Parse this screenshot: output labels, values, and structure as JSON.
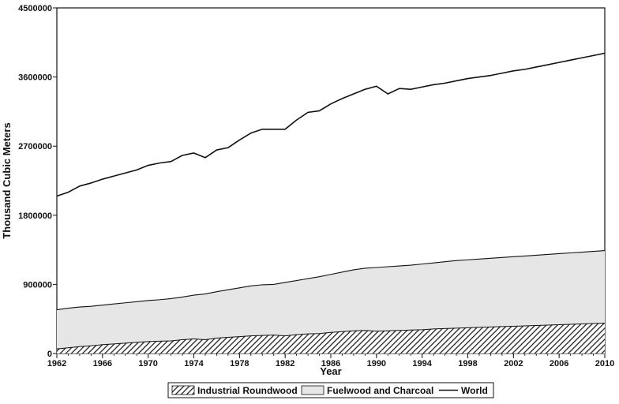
{
  "chart_data": {
    "type": "area",
    "xlabel": "Year",
    "ylabel": "Thousand Cubic Meters",
    "xlim": [
      1962,
      2010
    ],
    "ylim": [
      0,
      4500000
    ],
    "x_ticks": [
      "1962",
      "1966",
      "1970",
      "1974",
      "1978",
      "1982",
      "1986",
      "1990",
      "1994",
      "1998",
      "2002",
      "2006",
      "2010"
    ],
    "y_ticks": [
      "0",
      "900000",
      "1800000",
      "2700000",
      "3600000",
      "4500000"
    ],
    "grid": false,
    "legend_position": "bottom",
    "stacked_areas": true,
    "x": [
      1962,
      1963,
      1964,
      1965,
      1966,
      1967,
      1968,
      1969,
      1970,
      1971,
      1972,
      1973,
      1974,
      1975,
      1976,
      1977,
      1978,
      1979,
      1980,
      1981,
      1982,
      1983,
      1984,
      1985,
      1986,
      1987,
      1988,
      1989,
      1990,
      1991,
      1992,
      1993,
      1994,
      1995,
      1996,
      1997,
      1998,
      1999,
      2000,
      2001,
      2002,
      2003,
      2004,
      2005,
      2006,
      2007,
      2008,
      2009,
      2010
    ],
    "series": [
      {
        "name": "Industrial Roundwood",
        "style": "hatched",
        "fill": "#555555",
        "values": [
          60000,
          75000,
          90000,
          100000,
          115000,
          125000,
          135000,
          145000,
          155000,
          160000,
          165000,
          180000,
          190000,
          180000,
          200000,
          210000,
          220000,
          230000,
          235000,
          240000,
          230000,
          245000,
          255000,
          260000,
          275000,
          285000,
          295000,
          300000,
          290000,
          295000,
          300000,
          305000,
          310000,
          320000,
          325000,
          330000,
          335000,
          340000,
          345000,
          350000,
          355000,
          360000,
          365000,
          370000,
          375000,
          380000,
          385000,
          390000,
          395000
        ]
      },
      {
        "name": "Fuelwood and Charcoal",
        "style": "light-fill",
        "fill": "#e6e6e6",
        "values": [
          570000,
          590000,
          605000,
          615000,
          630000,
          645000,
          660000,
          675000,
          690000,
          700000,
          715000,
          735000,
          760000,
          775000,
          805000,
          830000,
          855000,
          880000,
          895000,
          900000,
          925000,
          950000,
          975000,
          1000000,
          1030000,
          1060000,
          1090000,
          1110000,
          1120000,
          1130000,
          1140000,
          1150000,
          1165000,
          1180000,
          1195000,
          1210000,
          1220000,
          1230000,
          1240000,
          1250000,
          1260000,
          1270000,
          1280000,
          1290000,
          1300000,
          1310000,
          1320000,
          1330000,
          1340000
        ]
      },
      {
        "name": "World",
        "style": "line",
        "stroke": "#111111",
        "values": [
          2050000,
          2100000,
          2180000,
          2220000,
          2270000,
          2310000,
          2350000,
          2390000,
          2450000,
          2480000,
          2500000,
          2580000,
          2610000,
          2550000,
          2650000,
          2680000,
          2780000,
          2870000,
          2920000,
          2920000,
          2920000,
          3040000,
          3140000,
          3160000,
          3250000,
          3320000,
          3380000,
          3440000,
          3480000,
          3380000,
          3450000,
          3440000,
          3470000,
          3500000,
          3520000,
          3550000,
          3580000,
          3600000,
          3620000,
          3650000,
          3680000,
          3700000,
          3730000,
          3760000,
          3790000,
          3820000,
          3850000,
          3880000,
          3910000
        ]
      }
    ]
  }
}
